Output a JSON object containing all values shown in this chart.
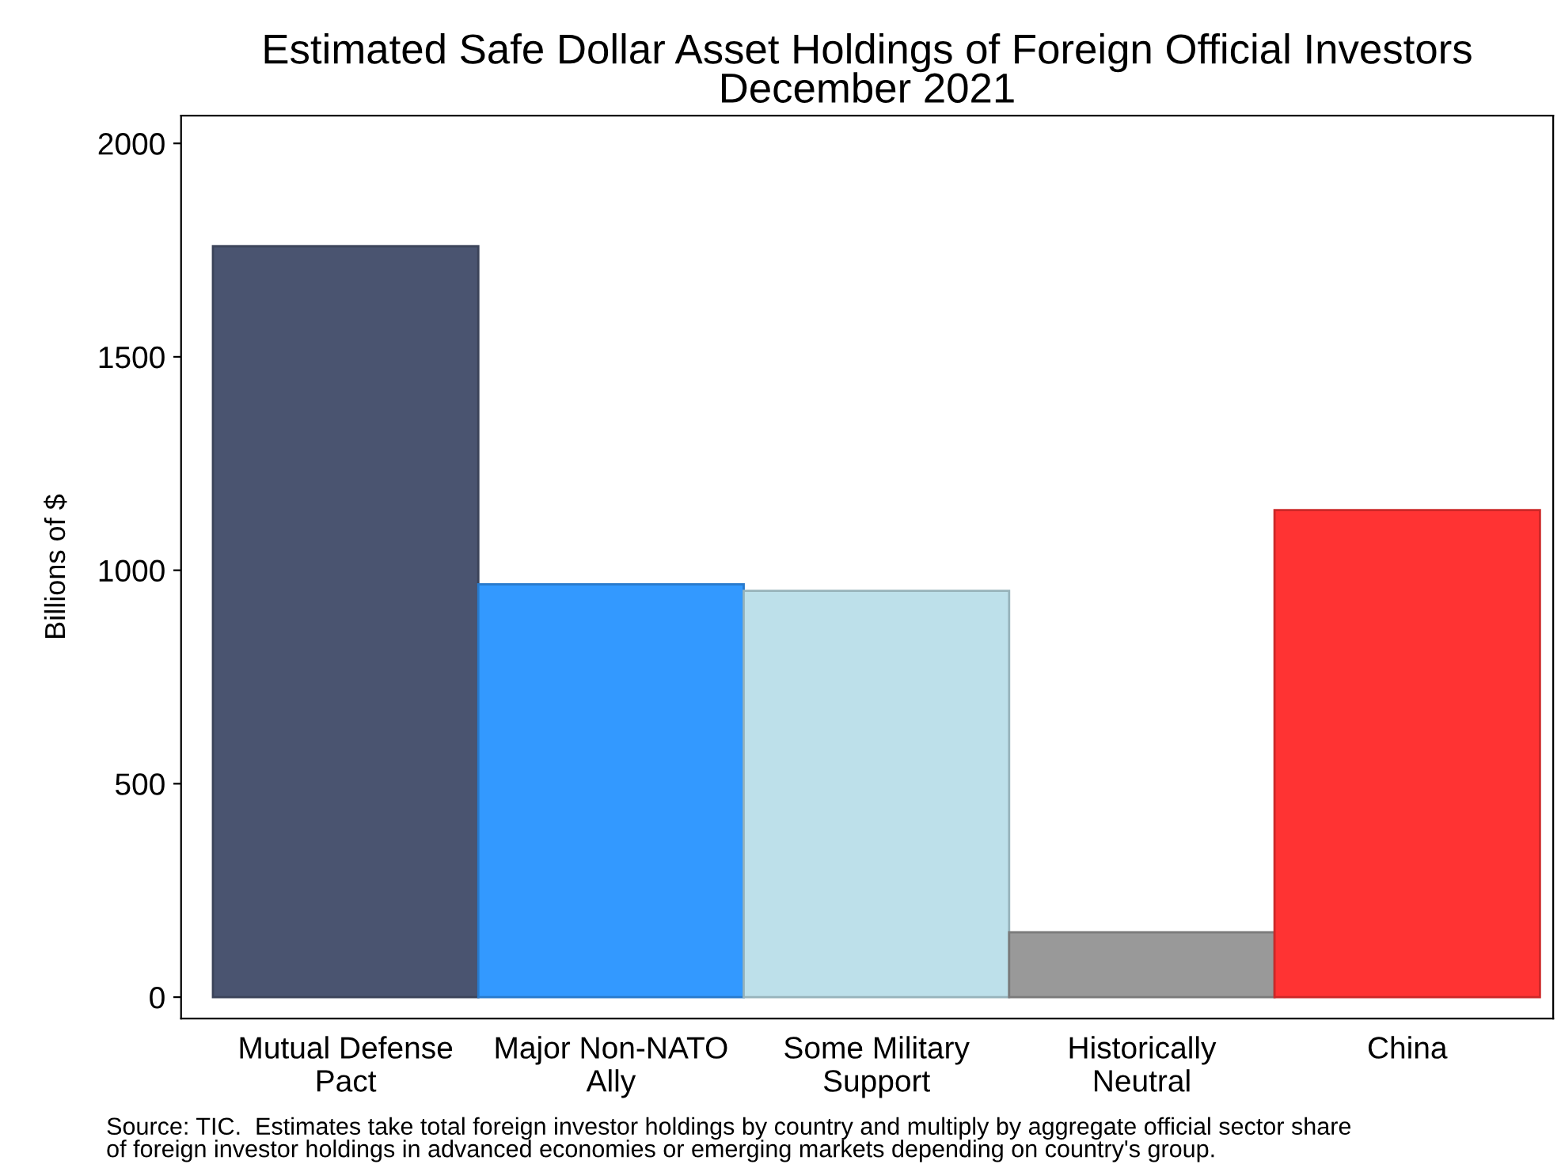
{
  "chart_data": {
    "type": "bar",
    "title": "Estimated Safe Dollar Asset Holdings of Foreign Official Investors\nDecember 2021",
    "ylabel": "Billions of $",
    "categories": [
      "Mutual Defense\nPact",
      "Major Non-NATO\nAlly",
      "Some Military\nSupport",
      "Historically\nNeutral",
      "China"
    ],
    "values": [
      1759,
      967,
      952,
      152,
      1141
    ],
    "colors": [
      "#4a5470",
      "#3399ff",
      "#bde0ea",
      "#999999",
      "#ff3333"
    ],
    "ylim": [
      -50,
      2065
    ],
    "yticks": [
      0,
      500,
      1000,
      1500,
      2000
    ],
    "grid": false,
    "legend": false,
    "annotations": [
      "Source: TIC.  Estimates take total foreign investor holdings by country and multiply by aggregate official sector share\nof foreign investor holdings in advanced economies or emerging markets depending on country's group."
    ]
  }
}
